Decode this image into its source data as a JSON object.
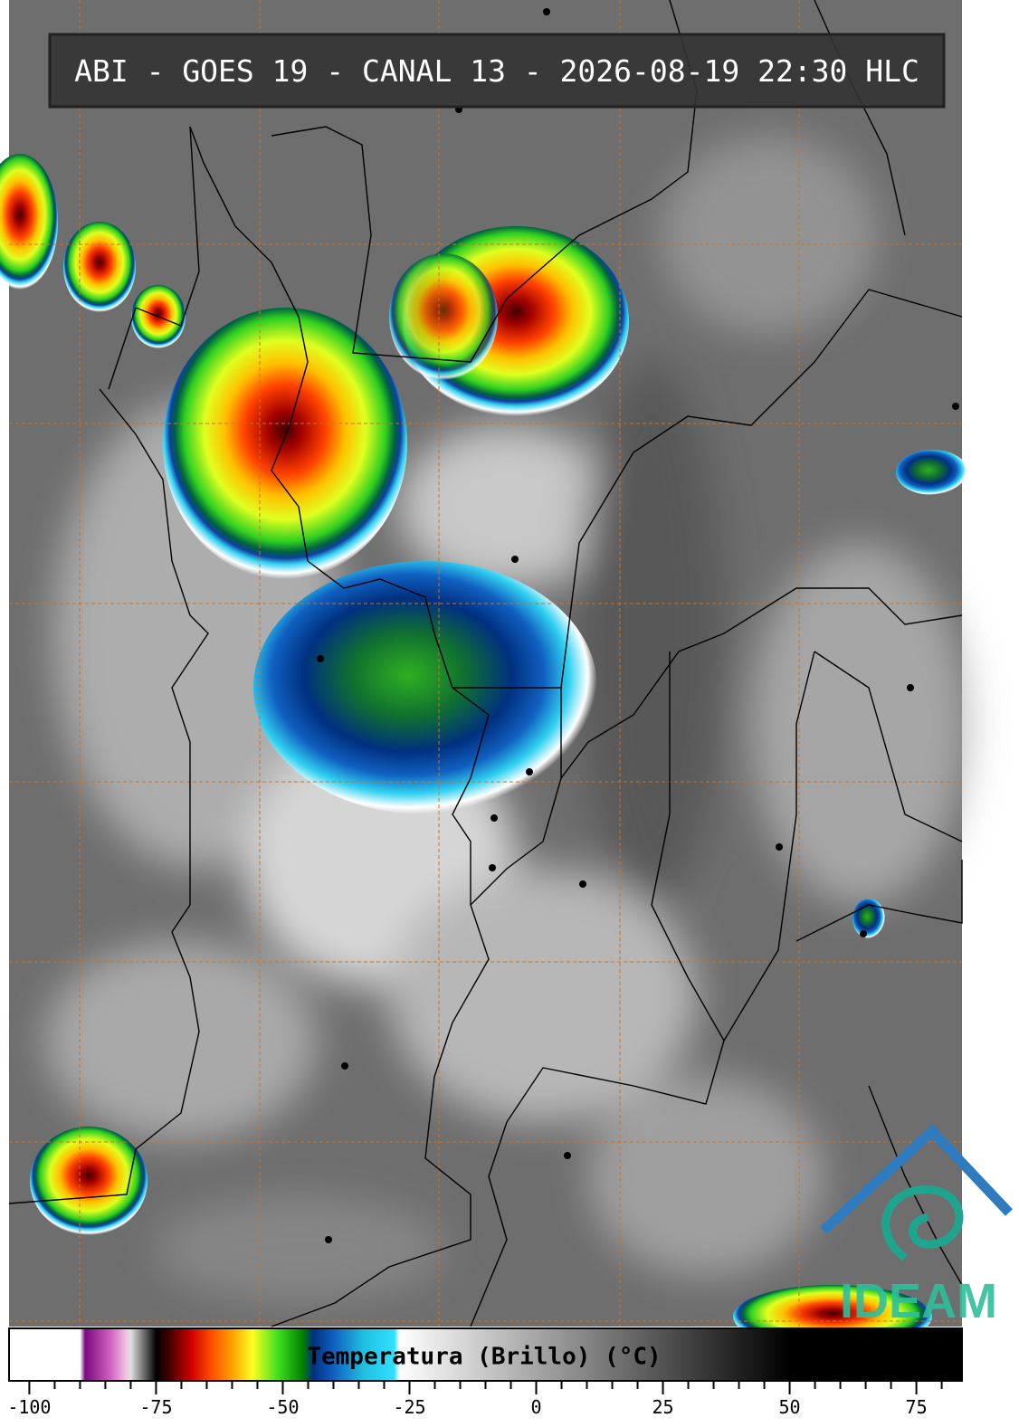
{
  "header": {
    "title": "ABI - GOES 19 - CANAL 13 - 2026-08-19 22:30 HLC"
  },
  "colorbar": {
    "label": "Temperatura (Brillo) (°C)",
    "range": [
      -104,
      84
    ],
    "ticks": [
      -100,
      -75,
      -50,
      -25,
      0,
      25,
      50,
      75
    ],
    "stops": [
      {
        "value": -104,
        "color": "#ffffff"
      },
      {
        "value": -90,
        "color": "#ffffff"
      },
      {
        "value": -89,
        "color": "#7a0a80"
      },
      {
        "value": -84,
        "color": "#d060c0"
      },
      {
        "value": -81,
        "color": "#f0c0e0"
      },
      {
        "value": -80,
        "color": "#e0e0e0"
      },
      {
        "value": -76,
        "color": "#303030"
      },
      {
        "value": -75,
        "color": "#000000"
      },
      {
        "value": -72,
        "color": "#500000"
      },
      {
        "value": -68,
        "color": "#d00000"
      },
      {
        "value": -64,
        "color": "#ff5000"
      },
      {
        "value": -60,
        "color": "#ffa000"
      },
      {
        "value": -56,
        "color": "#ffff20"
      },
      {
        "value": -51,
        "color": "#40e020"
      },
      {
        "value": -46,
        "color": "#008000"
      },
      {
        "value": -44,
        "color": "#003080"
      },
      {
        "value": -40,
        "color": "#1060c0"
      },
      {
        "value": -34,
        "color": "#20c0e0"
      },
      {
        "value": -28,
        "color": "#30e0ff"
      },
      {
        "value": -27,
        "color": "#ffffff"
      },
      {
        "value": 50,
        "color": "#000000"
      },
      {
        "value": 84,
        "color": "#000000"
      }
    ]
  },
  "logo": {
    "text": "IDEAM"
  }
}
